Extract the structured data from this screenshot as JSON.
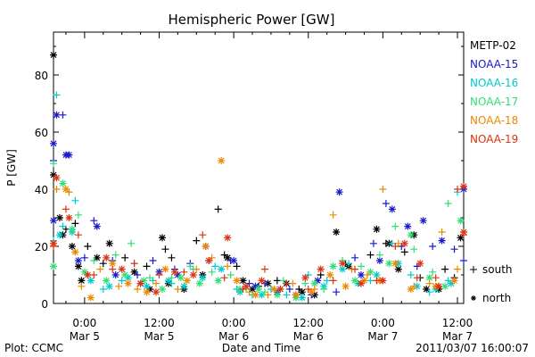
{
  "chart_data": {
    "type": "scatter",
    "title": "Hemispheric Power [GW]",
    "ylabel": "P [GW]",
    "xlabel": "Date and Time",
    "ylim": [
      0,
      95
    ],
    "xlim": [
      -5,
      61
    ],
    "yticks": [
      0,
      20,
      40,
      60,
      80
    ],
    "xticks": [
      {
        "x": 0,
        "line1": "0:00",
        "line2": "Mar 5"
      },
      {
        "x": 12,
        "line1": "12:00",
        "line2": "Mar 5"
      },
      {
        "x": 24,
        "line1": "0:00",
        "line2": "Mar 6"
      },
      {
        "x": 36,
        "line1": "12:00",
        "line2": "Mar 6"
      },
      {
        "x": 48,
        "line1": "0:00",
        "line2": "Mar 7"
      },
      {
        "x": 60,
        "line1": "12:00",
        "line2": "Mar 7"
      }
    ],
    "x_unit": "hours since 0:00 Mar 5",
    "marker_legend": [
      {
        "symbol": "+",
        "label": "south"
      },
      {
        "symbol": "*",
        "label": "north"
      }
    ],
    "series": [
      {
        "name": "METP-02",
        "color": "#000000",
        "south": [
          [
            -3.0,
            26
          ],
          [
            -1.5,
            28
          ],
          [
            0.5,
            20
          ],
          [
            3.0,
            14
          ],
          [
            6.5,
            16
          ],
          [
            10.0,
            13
          ],
          [
            13.0,
            19
          ],
          [
            14.0,
            16
          ],
          [
            18.0,
            22
          ],
          [
            21.5,
            33
          ],
          [
            22.5,
            17
          ],
          [
            24.5,
            13
          ],
          [
            28.0,
            6
          ],
          [
            31.0,
            8
          ],
          [
            34.5,
            5
          ],
          [
            38.0,
            10
          ],
          [
            42.0,
            14
          ],
          [
            46.0,
            17
          ],
          [
            48.5,
            21
          ],
          [
            51.5,
            18
          ],
          [
            54.0,
            9
          ],
          [
            58.0,
            12
          ],
          [
            59.5,
            9
          ]
        ],
        "north": [
          [
            -6.5,
            87
          ],
          [
            -5.0,
            45
          ],
          [
            -4.0,
            30
          ],
          [
            -3.5,
            24
          ],
          [
            -2.0,
            20
          ],
          [
            -1.0,
            13
          ],
          [
            -0.5,
            8
          ],
          [
            2.0,
            16
          ],
          [
            4.0,
            21
          ],
          [
            8.0,
            11
          ],
          [
            10.5,
            5
          ],
          [
            12.5,
            23
          ],
          [
            13.5,
            7
          ],
          [
            16.0,
            5
          ],
          [
            19.0,
            10
          ],
          [
            23.0,
            16
          ],
          [
            25.5,
            8
          ],
          [
            27.0,
            5
          ],
          [
            29.5,
            7
          ],
          [
            32.5,
            7
          ],
          [
            35.0,
            4
          ],
          [
            37.0,
            3
          ],
          [
            40.5,
            25
          ],
          [
            42.5,
            13
          ],
          [
            47.0,
            26
          ],
          [
            49.0,
            21
          ],
          [
            50.5,
            12
          ],
          [
            53.0,
            24
          ],
          [
            55.0,
            5
          ],
          [
            57.0,
            5
          ],
          [
            60.5,
            23
          ]
        ]
      },
      {
        "name": "NOAA-15",
        "color": "#1a1acc",
        "south": [
          [
            -6.5,
            50
          ],
          [
            -3.5,
            66
          ],
          [
            0.0,
            16
          ],
          [
            1.5,
            29
          ],
          [
            4.5,
            15
          ],
          [
            8.5,
            10
          ],
          [
            11.0,
            15
          ],
          [
            14.5,
            12
          ],
          [
            17.0,
            14
          ],
          [
            20.0,
            15
          ],
          [
            23.5,
            15
          ],
          [
            26.5,
            7
          ],
          [
            29.0,
            7
          ],
          [
            33.0,
            5
          ],
          [
            36.5,
            3
          ],
          [
            40.5,
            4
          ],
          [
            43.5,
            16
          ],
          [
            46.5,
            21
          ],
          [
            48.5,
            35
          ],
          [
            51.0,
            20
          ],
          [
            53.5,
            13
          ],
          [
            56.0,
            20
          ],
          [
            59.5,
            19
          ],
          [
            62.0,
            15
          ]
        ],
        "north": [
          [
            -6.0,
            29
          ],
          [
            -5.0,
            56
          ],
          [
            -4.5,
            66
          ],
          [
            -3.0,
            52
          ],
          [
            -2.5,
            52
          ],
          [
            -1.0,
            15
          ],
          [
            2.0,
            27
          ],
          [
            5.0,
            10
          ],
          [
            9.0,
            7
          ],
          [
            12.0,
            11
          ],
          [
            15.0,
            10
          ],
          [
            19.5,
            20
          ],
          [
            24.0,
            15
          ],
          [
            27.5,
            6
          ],
          [
            31.0,
            4
          ],
          [
            34.0,
            3
          ],
          [
            37.5,
            8
          ],
          [
            41.0,
            39
          ],
          [
            44.5,
            10
          ],
          [
            47.5,
            15
          ],
          [
            49.5,
            33
          ],
          [
            52.0,
            27
          ],
          [
            54.5,
            29
          ],
          [
            57.5,
            22
          ],
          [
            61.0,
            40
          ]
        ]
      },
      {
        "name": "NOAA-16",
        "color": "#00cccc",
        "south": [
          [
            -5.5,
            22
          ],
          [
            -4.5,
            73
          ],
          [
            -3.5,
            27
          ],
          [
            -1.5,
            36
          ],
          [
            0.5,
            10
          ],
          [
            3.0,
            5
          ],
          [
            6.0,
            8
          ],
          [
            8.0,
            14
          ],
          [
            11.0,
            8
          ],
          [
            14.0,
            7
          ],
          [
            17.5,
            12
          ],
          [
            21.0,
            13
          ],
          [
            24.5,
            5
          ],
          [
            27.0,
            3
          ],
          [
            30.0,
            5
          ],
          [
            32.5,
            3
          ],
          [
            36.0,
            10
          ],
          [
            39.0,
            8
          ],
          [
            42.5,
            14
          ],
          [
            46.0,
            8
          ],
          [
            49.5,
            21
          ],
          [
            52.5,
            10
          ],
          [
            55.5,
            4
          ],
          [
            58.5,
            8
          ],
          [
            60.0,
            39
          ]
        ],
        "north": [
          [
            -4.0,
            24
          ],
          [
            -2.0,
            25
          ],
          [
            1.0,
            8
          ],
          [
            4.0,
            6
          ],
          [
            7.0,
            9
          ],
          [
            10.0,
            6
          ],
          [
            13.5,
            8
          ],
          [
            16.0,
            6
          ],
          [
            19.0,
            9
          ],
          [
            22.0,
            12
          ],
          [
            25.0,
            4
          ],
          [
            28.5,
            3
          ],
          [
            31.5,
            5
          ],
          [
            35.0,
            2
          ],
          [
            38.5,
            6
          ],
          [
            41.5,
            12
          ],
          [
            44.0,
            7
          ],
          [
            47.0,
            10
          ],
          [
            50.5,
            14
          ],
          [
            53.5,
            6
          ],
          [
            56.5,
            5
          ],
          [
            59.0,
            7
          ]
        ]
      },
      {
        "name": "NOAA-17",
        "color": "#33dd77",
        "south": [
          [
            -5.0,
            49
          ],
          [
            -2.5,
            39
          ],
          [
            -1.0,
            31
          ],
          [
            1.5,
            15
          ],
          [
            5.0,
            17
          ],
          [
            7.5,
            21
          ],
          [
            10.5,
            9
          ],
          [
            14.0,
            9
          ],
          [
            17.0,
            13
          ],
          [
            20.5,
            11
          ],
          [
            23.5,
            10
          ],
          [
            26.0,
            5
          ],
          [
            29.0,
            4
          ],
          [
            32.0,
            8
          ],
          [
            35.5,
            7
          ],
          [
            38.5,
            5
          ],
          [
            41.5,
            15
          ],
          [
            44.5,
            13
          ],
          [
            47.5,
            17
          ],
          [
            50.0,
            27
          ],
          [
            53.0,
            19
          ],
          [
            56.0,
            11
          ],
          [
            58.5,
            35
          ],
          [
            61.0,
            25
          ]
        ],
        "north": [
          [
            -6.5,
            13
          ],
          [
            -3.5,
            42
          ],
          [
            -2.0,
            26
          ],
          [
            0.0,
            11
          ],
          [
            3.5,
            8
          ],
          [
            6.5,
            10
          ],
          [
            9.5,
            8
          ],
          [
            12.5,
            5
          ],
          [
            15.5,
            9
          ],
          [
            18.5,
            7
          ],
          [
            21.5,
            8
          ],
          [
            25.0,
            5
          ],
          [
            28.0,
            5
          ],
          [
            31.0,
            3
          ],
          [
            34.0,
            2
          ],
          [
            37.0,
            7
          ],
          [
            40.0,
            13
          ],
          [
            43.5,
            8
          ],
          [
            46.0,
            11
          ],
          [
            49.0,
            14
          ],
          [
            52.5,
            24
          ],
          [
            55.5,
            9
          ],
          [
            58.0,
            6
          ],
          [
            60.5,
            29
          ]
        ]
      },
      {
        "name": "NOAA-18",
        "color": "#ee8800",
        "south": [
          [
            -4.5,
            40
          ],
          [
            -2.5,
            39
          ],
          [
            -0.5,
            6
          ],
          [
            2.5,
            12
          ],
          [
            5.5,
            6
          ],
          [
            8.5,
            5
          ],
          [
            11.5,
            7
          ],
          [
            15.0,
            5
          ],
          [
            18.0,
            12
          ],
          [
            20.5,
            16
          ],
          [
            23.0,
            13
          ],
          [
            26.5,
            4
          ],
          [
            29.5,
            3
          ],
          [
            33.5,
            7
          ],
          [
            37.0,
            5
          ],
          [
            40.0,
            31
          ],
          [
            43.0,
            12
          ],
          [
            45.5,
            10
          ],
          [
            48.0,
            40
          ],
          [
            50.5,
            21
          ],
          [
            53.0,
            6
          ],
          [
            55.5,
            7
          ],
          [
            57.5,
            25
          ],
          [
            60.0,
            12
          ]
        ],
        "north": [
          [
            -6.0,
            21
          ],
          [
            -3.0,
            40
          ],
          [
            -1.5,
            18
          ],
          [
            1.0,
            2
          ],
          [
            4.5,
            14
          ],
          [
            7.0,
            7
          ],
          [
            10.0,
            4
          ],
          [
            13.0,
            12
          ],
          [
            16.5,
            8
          ],
          [
            19.5,
            20
          ],
          [
            22.0,
            50
          ],
          [
            24.5,
            8
          ],
          [
            27.5,
            3
          ],
          [
            30.5,
            5
          ],
          [
            34.0,
            3
          ],
          [
            36.5,
            4
          ],
          [
            39.5,
            10
          ],
          [
            42.0,
            6
          ],
          [
            45.0,
            8
          ],
          [
            47.5,
            8
          ],
          [
            50.0,
            14
          ],
          [
            52.5,
            5
          ],
          [
            56.5,
            6
          ],
          [
            59.5,
            8
          ]
        ]
      },
      {
        "name": "NOAA-19",
        "color": "#dd3311",
        "south": [
          [
            -5.5,
            20
          ],
          [
            -3.0,
            33
          ],
          [
            -1.0,
            24
          ],
          [
            1.5,
            10
          ],
          [
            4.5,
            12
          ],
          [
            8.0,
            14
          ],
          [
            12.0,
            10
          ],
          [
            16.0,
            11
          ],
          [
            19.0,
            24
          ],
          [
            22.5,
            9
          ],
          [
            25.5,
            5
          ],
          [
            29.0,
            12
          ],
          [
            32.5,
            7
          ],
          [
            36.0,
            5
          ],
          [
            40.0,
            8
          ],
          [
            43.5,
            12
          ],
          [
            47.0,
            8
          ],
          [
            50.0,
            20
          ],
          [
            53.5,
            9
          ],
          [
            56.5,
            9
          ],
          [
            60.0,
            40
          ],
          [
            61.5,
            24
          ]
        ],
        "north": [
          [
            -6.0,
            21
          ],
          [
            -4.5,
            44
          ],
          [
            -2.5,
            30
          ],
          [
            0.5,
            10
          ],
          [
            3.5,
            16
          ],
          [
            6.0,
            12
          ],
          [
            9.0,
            7
          ],
          [
            11.5,
            4
          ],
          [
            14.5,
            11
          ],
          [
            17.5,
            10
          ],
          [
            20.0,
            15
          ],
          [
            23.0,
            23
          ],
          [
            26.0,
            6
          ],
          [
            28.5,
            8
          ],
          [
            31.5,
            5
          ],
          [
            35.5,
            9
          ],
          [
            38.0,
            12
          ],
          [
            41.5,
            14
          ],
          [
            44.5,
            7
          ],
          [
            48.0,
            8
          ],
          [
            51.5,
            21
          ],
          [
            54.0,
            14
          ],
          [
            57.0,
            6
          ],
          [
            61.5,
            41
          ],
          [
            62.0,
            25
          ]
        ]
      }
    ]
  },
  "footer": {
    "plot_label": "Plot: CCMC",
    "timestamp": "2011/03/07 16:00:07"
  }
}
